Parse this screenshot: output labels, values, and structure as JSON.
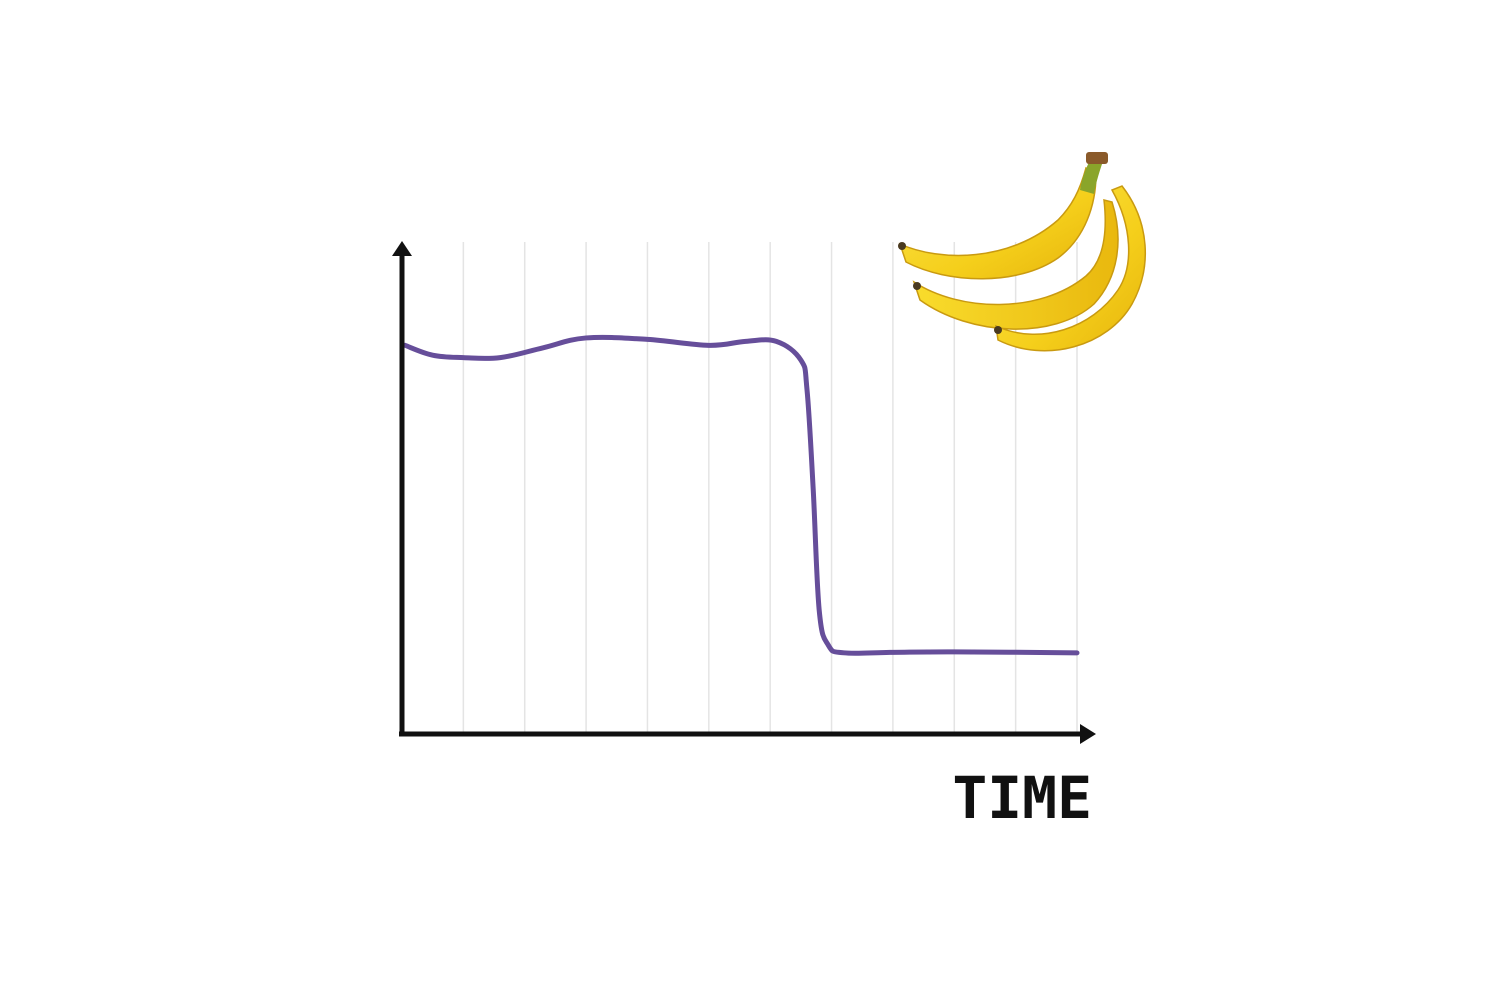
{
  "chart_data": {
    "type": "line",
    "xlabel": "TIME",
    "ylabel": "",
    "title": "",
    "grid": {
      "vertical": true,
      "horizontal": false
    },
    "xlim": [
      0,
      11
    ],
    "ylim": [
      0,
      10
    ],
    "series": [
      {
        "points": [
          [
            0.05,
            7.9
          ],
          [
            0.5,
            7.7
          ],
          [
            1.0,
            7.65
          ],
          [
            1.6,
            7.65
          ],
          [
            2.3,
            7.85
          ],
          [
            3.0,
            8.05
          ],
          [
            4.0,
            8.02
          ],
          [
            5.0,
            7.9
          ],
          [
            5.6,
            7.98
          ],
          [
            6.1,
            7.98
          ],
          [
            6.5,
            7.6
          ],
          [
            6.6,
            7.0
          ],
          [
            6.7,
            5.0
          ],
          [
            6.8,
            2.5
          ],
          [
            6.95,
            1.8
          ],
          [
            7.2,
            1.65
          ],
          [
            8.0,
            1.66
          ],
          [
            9.0,
            1.67
          ],
          [
            11.0,
            1.65
          ]
        ],
        "color": "#664e9a"
      }
    ],
    "colors": {
      "axis": "#111111",
      "grid": "#e4e4e4",
      "line": "#664e9a"
    },
    "decoration": {
      "icon": "banana-bunch-icon"
    }
  }
}
